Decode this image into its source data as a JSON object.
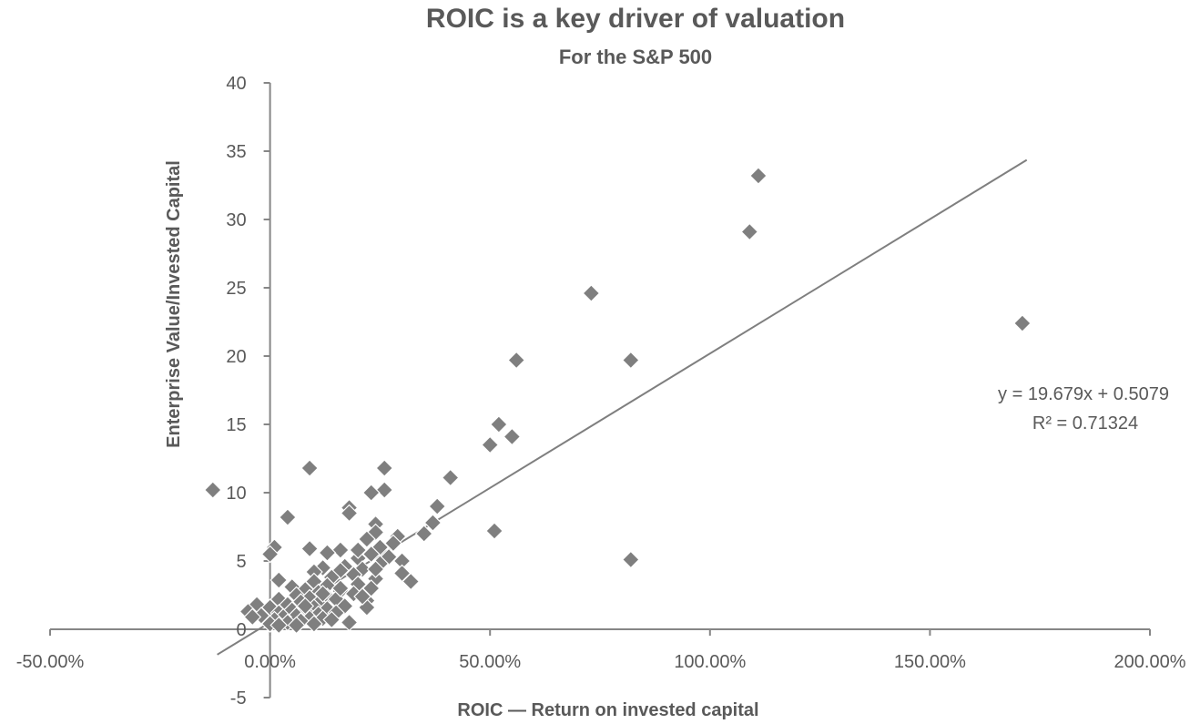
{
  "chart_data": {
    "type": "scatter",
    "title": "ROIC is a key driver of valuation",
    "subtitle": "For the S&P 500",
    "xlabel": "ROIC — Return on invested capital",
    "ylabel": "Enterprise Value/Invested Capital",
    "xlim": [
      -0.5,
      2.0
    ],
    "ylim": [
      -5,
      40
    ],
    "xticks": [
      -0.5,
      0,
      0.5,
      1.0,
      1.5,
      2.0
    ],
    "xtick_labels": [
      "-50.00%",
      "0.00%",
      "50.00%",
      "100.00%",
      "150.00%",
      "200.00%"
    ],
    "yticks": [
      -5,
      0,
      5,
      10,
      15,
      20,
      25,
      30,
      35,
      40
    ],
    "ytick_labels": [
      "-5",
      "0",
      "5",
      "10",
      "15",
      "20",
      "25",
      "30",
      "35",
      "40"
    ],
    "grid": false,
    "marker_color": "#7f7f7f",
    "trendline": {
      "slope": 19.679,
      "intercept": 0.5079,
      "x_range": [
        -0.12,
        1.72
      ],
      "color": "#7f7f7f",
      "equation_label": "y = 19.679x + 0.5079",
      "r2_label": "R² = 0.71324"
    },
    "points": [
      {
        "x": 1.11,
        "y": 33.2
      },
      {
        "x": 1.09,
        "y": 29.1
      },
      {
        "x": 0.73,
        "y": 24.6
      },
      {
        "x": 1.71,
        "y": 22.4
      },
      {
        "x": 0.56,
        "y": 19.7
      },
      {
        "x": 0.82,
        "y": 19.7
      },
      {
        "x": 0.52,
        "y": 15.0
      },
      {
        "x": 0.55,
        "y": 14.1
      },
      {
        "x": 0.5,
        "y": 13.5
      },
      {
        "x": 0.09,
        "y": 11.8
      },
      {
        "x": 0.26,
        "y": 11.8
      },
      {
        "x": 0.41,
        "y": 11.1
      },
      {
        "x": -0.13,
        "y": 10.2
      },
      {
        "x": 0.26,
        "y": 10.2
      },
      {
        "x": 0.23,
        "y": 10.0
      },
      {
        "x": 0.38,
        "y": 9.0
      },
      {
        "x": 0.18,
        "y": 8.9
      },
      {
        "x": 0.18,
        "y": 8.5
      },
      {
        "x": 0.04,
        "y": 8.2
      },
      {
        "x": 0.37,
        "y": 7.8
      },
      {
        "x": 0.24,
        "y": 7.7
      },
      {
        "x": 0.51,
        "y": 7.2
      },
      {
        "x": 0.35,
        "y": 7.0
      },
      {
        "x": 0.24,
        "y": 7.1
      },
      {
        "x": 0.29,
        "y": 6.8
      },
      {
        "x": 0.22,
        "y": 6.6
      },
      {
        "x": 0.28,
        "y": 6.3
      },
      {
        "x": 0.01,
        "y": 6.0
      },
      {
        "x": 0.25,
        "y": 6.0
      },
      {
        "x": 0.09,
        "y": 5.9
      },
      {
        "x": 0.16,
        "y": 5.8
      },
      {
        "x": 0.13,
        "y": 5.6
      },
      {
        "x": 0.0,
        "y": 5.5
      },
      {
        "x": 0.23,
        "y": 5.5
      },
      {
        "x": 0.27,
        "y": 5.3
      },
      {
        "x": 0.2,
        "y": 5.2
      },
      {
        "x": 0.82,
        "y": 5.1
      },
      {
        "x": 0.3,
        "y": 5.0
      },
      {
        "x": 0.25,
        "y": 4.8
      },
      {
        "x": 0.17,
        "y": 4.6
      },
      {
        "x": 0.12,
        "y": 4.5
      },
      {
        "x": 0.21,
        "y": 4.4
      },
      {
        "x": 0.16,
        "y": 4.3
      },
      {
        "x": 0.1,
        "y": 4.2
      },
      {
        "x": 0.3,
        "y": 4.1
      },
      {
        "x": 0.19,
        "y": 4.0
      },
      {
        "x": 0.14,
        "y": 3.8
      },
      {
        "x": 0.24,
        "y": 3.7
      },
      {
        "x": 0.02,
        "y": 3.6
      },
      {
        "x": 0.1,
        "y": 3.5
      },
      {
        "x": 0.32,
        "y": 3.5
      },
      {
        "x": 0.2,
        "y": 3.3
      },
      {
        "x": 0.13,
        "y": 3.2
      },
      {
        "x": 0.05,
        "y": 3.1
      },
      {
        "x": 0.23,
        "y": 3.0
      },
      {
        "x": 0.08,
        "y": 2.9
      },
      {
        "x": 0.16,
        "y": 2.8
      },
      {
        "x": 0.11,
        "y": 2.7
      },
      {
        "x": 0.19,
        "y": 2.6
      },
      {
        "x": 0.06,
        "y": 2.5
      },
      {
        "x": 0.13,
        "y": 2.4
      },
      {
        "x": 0.09,
        "y": 2.3
      },
      {
        "x": 0.15,
        "y": 2.2
      },
      {
        "x": 0.02,
        "y": 2.2
      },
      {
        "x": 0.22,
        "y": 2.1
      },
      {
        "x": 0.07,
        "y": 2.0
      },
      {
        "x": 0.11,
        "y": 1.9
      },
      {
        "x": 0.04,
        "y": 1.8
      },
      {
        "x": 0.17,
        "y": 1.7
      },
      {
        "x": -0.03,
        "y": 1.8
      },
      {
        "x": 0.0,
        "y": 1.6
      },
      {
        "x": 0.1,
        "y": 1.6
      },
      {
        "x": 0.13,
        "y": 1.5
      },
      {
        "x": 0.05,
        "y": 1.4
      },
      {
        "x": 0.22,
        "y": 1.6
      },
      {
        "x": -0.05,
        "y": 1.3
      },
      {
        "x": 0.08,
        "y": 1.3
      },
      {
        "x": 0.02,
        "y": 1.2
      },
      {
        "x": 0.15,
        "y": 1.2
      },
      {
        "x": 0.11,
        "y": 1.1
      },
      {
        "x": 0.06,
        "y": 1.0
      },
      {
        "x": -0.02,
        "y": 1.0
      },
      {
        "x": -0.04,
        "y": 0.9
      },
      {
        "x": 0.03,
        "y": 0.9
      },
      {
        "x": 0.09,
        "y": 0.8
      },
      {
        "x": 0.12,
        "y": 0.8
      },
      {
        "x": 0.01,
        "y": 0.7
      },
      {
        "x": 0.07,
        "y": 0.6
      },
      {
        "x": 0.18,
        "y": 0.5
      },
      {
        "x": 0.04,
        "y": 0.5
      },
      {
        "x": 0.0,
        "y": 0.4
      },
      {
        "x": 0.1,
        "y": 0.4
      },
      {
        "x": 0.06,
        "y": 0.3
      },
      {
        "x": 0.02,
        "y": 0.3
      },
      {
        "x": 0.14,
        "y": 0.7
      },
      {
        "x": 0.08,
        "y": 1.7
      },
      {
        "x": 0.12,
        "y": 2.6
      },
      {
        "x": 0.16,
        "y": 3.0
      },
      {
        "x": 0.21,
        "y": 2.4
      },
      {
        "x": 0.24,
        "y": 4.4
      },
      {
        "x": 0.2,
        "y": 5.8
      }
    ]
  }
}
